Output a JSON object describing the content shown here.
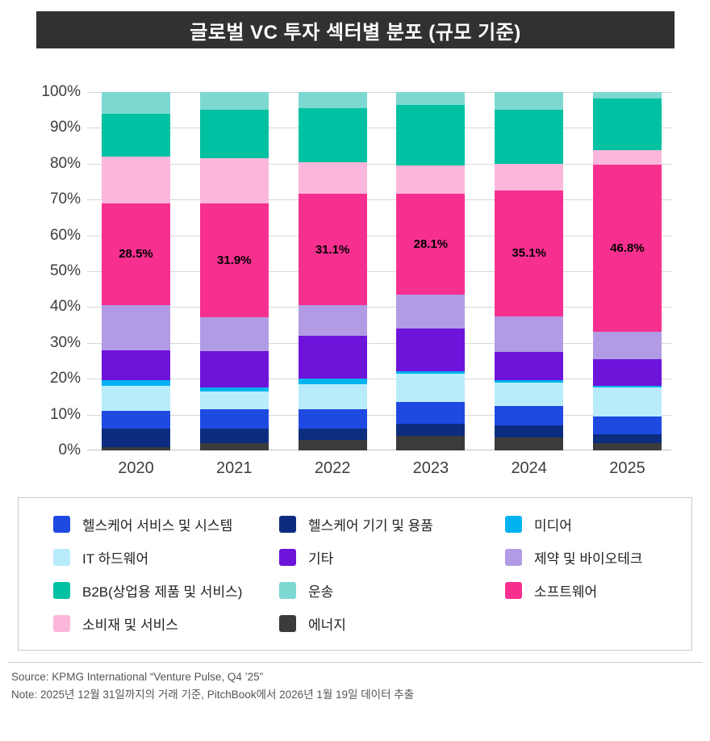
{
  "title": "글로벌 VC 투자 섹터별 분포 (규모 기준)",
  "chart_data": {
    "type": "bar",
    "stacked": true,
    "title": "글로벌 VC 투자 섹터별 분포 (규모 기준)",
    "categories": [
      "2020",
      "2021",
      "2022",
      "2023",
      "2024",
      "2025"
    ],
    "ylim": [
      0,
      100
    ],
    "ytick_labels": [
      "0%",
      "10%",
      "20%",
      "30%",
      "40%",
      "50%",
      "60%",
      "70%",
      "80%",
      "90%",
      "100%"
    ],
    "grid": true,
    "legend_position": "bottom",
    "series": [
      {
        "name": "에너지",
        "color": "#3b3b3b",
        "values": [
          1.0,
          2.0,
          3.0,
          4.0,
          3.5,
          2.0
        ]
      },
      {
        "name": "헬스케어 기기 및 용품",
        "color": "#0c2d7f",
        "values": [
          5.0,
          4.0,
          3.0,
          3.5,
          3.5,
          2.5
        ]
      },
      {
        "name": "헬스케어 서비스 및 시스템",
        "color": "#1e4ae2",
        "values": [
          5.0,
          5.5,
          5.5,
          6.0,
          5.5,
          5.0
        ]
      },
      {
        "name": "IT 하드웨어",
        "color": "#b9ecfb",
        "values": [
          7.0,
          5.0,
          7.0,
          8.0,
          6.5,
          8.0
        ]
      },
      {
        "name": "미디어",
        "color": "#00b2f0",
        "values": [
          1.5,
          1.1,
          1.5,
          0.5,
          0.5,
          0.5
        ]
      },
      {
        "name": "기타",
        "color": "#6d13da",
        "values": [
          8.5,
          10.0,
          12.0,
          12.0,
          8.0,
          7.5
        ]
      },
      {
        "name": "제약 및 바이오테크",
        "color": "#b29be5",
        "values": [
          12.5,
          9.5,
          8.5,
          9.5,
          10.0,
          7.5
        ]
      },
      {
        "name": "소프트웨어",
        "color": "#f73090",
        "values": [
          28.5,
          31.9,
          31.1,
          28.1,
          35.1,
          46.8
        ],
        "labeled": true
      },
      {
        "name": "소비재 및 서비스",
        "color": "#fbb7db",
        "values": [
          13.0,
          12.5,
          8.9,
          8.0,
          7.4,
          4.0
        ]
      },
      {
        "name": "B2B(상업용 제품 및 서비스)",
        "color": "#00c1a2",
        "values": [
          12.0,
          13.5,
          15.0,
          16.9,
          15.0,
          14.5
        ]
      },
      {
        "name": "운송",
        "color": "#7ed8d2",
        "values": [
          6.0,
          5.0,
          4.5,
          3.5,
          5.0,
          1.7
        ]
      }
    ],
    "bar_labels": {
      "series": "소프트웨어",
      "values": [
        "28.5%",
        "31.9%",
        "31.1%",
        "28.1%",
        "35.1%",
        "46.8%"
      ]
    }
  },
  "legend": {
    "items": [
      {
        "label": "헬스케어 서비스 및 시스템",
        "color": "#1e4ae2"
      },
      {
        "label": "헬스케어 기기 및 용품",
        "color": "#0c2d7f"
      },
      {
        "label": "미디어",
        "color": "#00b2f0"
      },
      {
        "label": "IT 하드웨어",
        "color": "#b9ecfb"
      },
      {
        "label": "기타",
        "color": "#6d13da"
      },
      {
        "label": "제약 및 바이오테크",
        "color": "#b29be5"
      },
      {
        "label": "B2B(상업용 제품 및 서비스)",
        "color": "#00c1a2"
      },
      {
        "label": "운송",
        "color": "#7ed8d2"
      },
      {
        "label": "소프트웨어",
        "color": "#f73090"
      },
      {
        "label": "소비재 및 서비스",
        "color": "#fbb7db"
      },
      {
        "label": "에너지",
        "color": "#3b3b3b"
      }
    ]
  },
  "footer": {
    "source": "Source: KPMG International “Venture Pulse, Q4 ’25”",
    "note": "Note: 2025년 12월 31일까지의 거래 기준, PitchBook에서 2026년 1월 19일 데이터 추출"
  }
}
